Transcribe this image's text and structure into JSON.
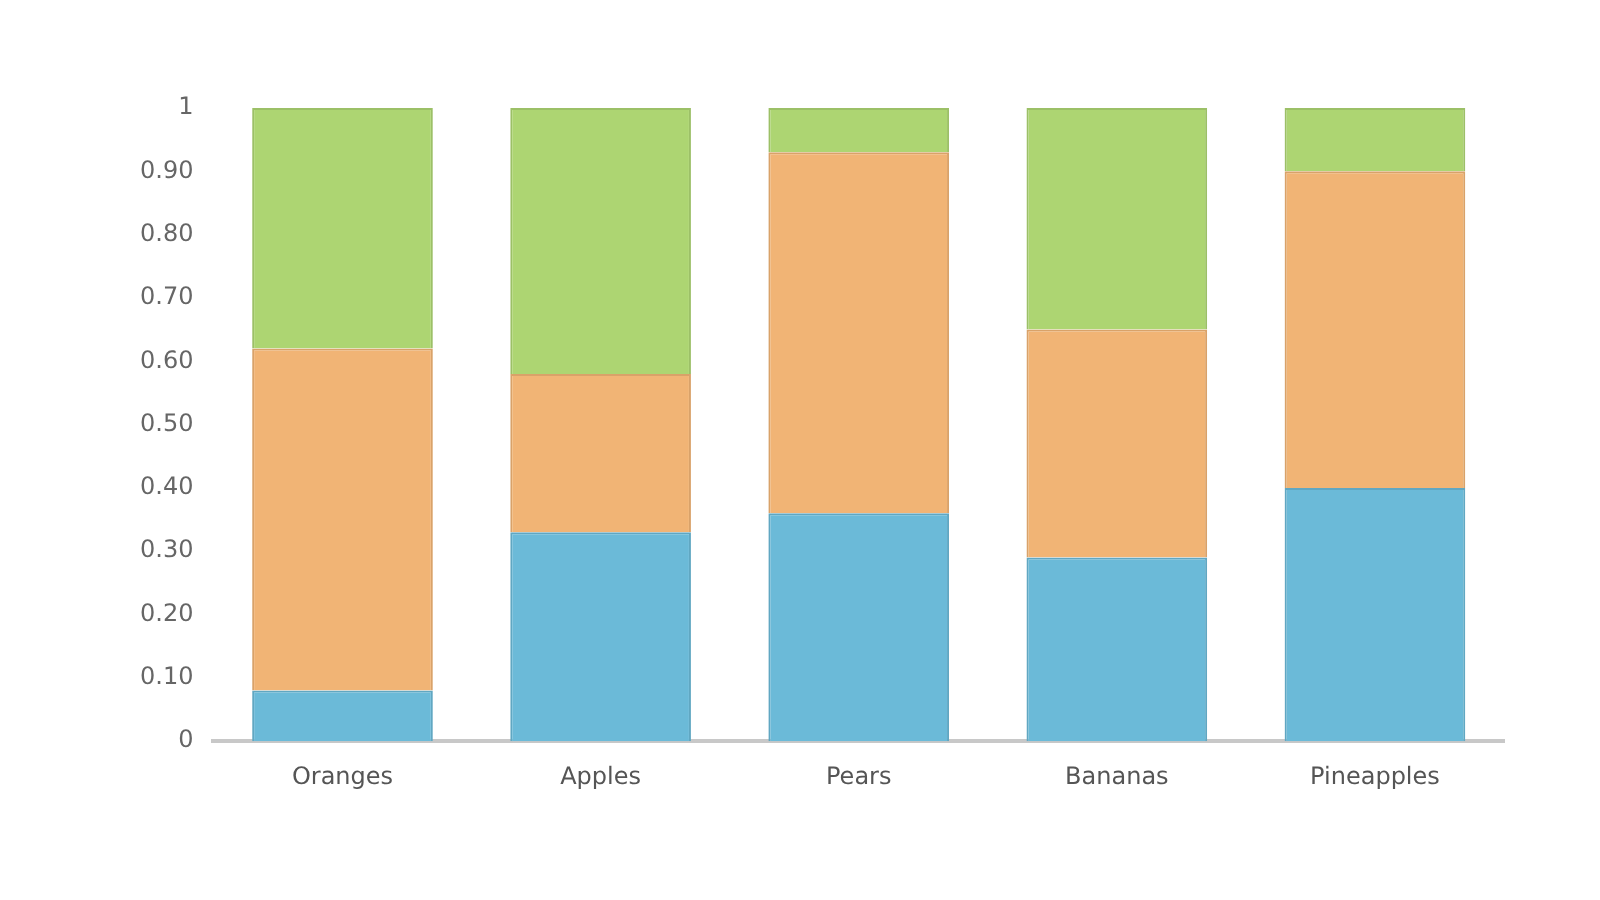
{
  "chart_data": {
    "type": "bar",
    "stacked": true,
    "categories": [
      "Oranges",
      "Apples",
      "Pears",
      "Bananas",
      "Pineapples"
    ],
    "series": [
      {
        "color": "#6bbad8",
        "values": [
          0.08,
          0.33,
          0.36,
          0.29,
          0.4
        ]
      },
      {
        "color": "#f1b475",
        "values": [
          0.54,
          0.25,
          0.57,
          0.36,
          0.5
        ]
      },
      {
        "color": "#add572",
        "values": [
          0.38,
          0.42,
          0.07,
          0.35,
          0.1
        ]
      }
    ],
    "ylim": [
      0,
      1
    ],
    "yticks": [
      0,
      {
        "value": 0.1,
        "label": "0.10"
      },
      {
        "value": 0.2,
        "label": "0.20"
      },
      {
        "value": 0.3,
        "label": "0.30"
      },
      {
        "value": 0.4,
        "label": "0.40"
      },
      {
        "value": 0.5,
        "label": "0.50"
      },
      {
        "value": 0.6,
        "label": "0.60"
      },
      {
        "value": 0.7,
        "label": "0.70"
      },
      {
        "value": 0.8,
        "label": "0.80"
      },
      {
        "value": 0.9,
        "label": "0.90"
      },
      1
    ],
    "grid": false,
    "legend": false
  }
}
